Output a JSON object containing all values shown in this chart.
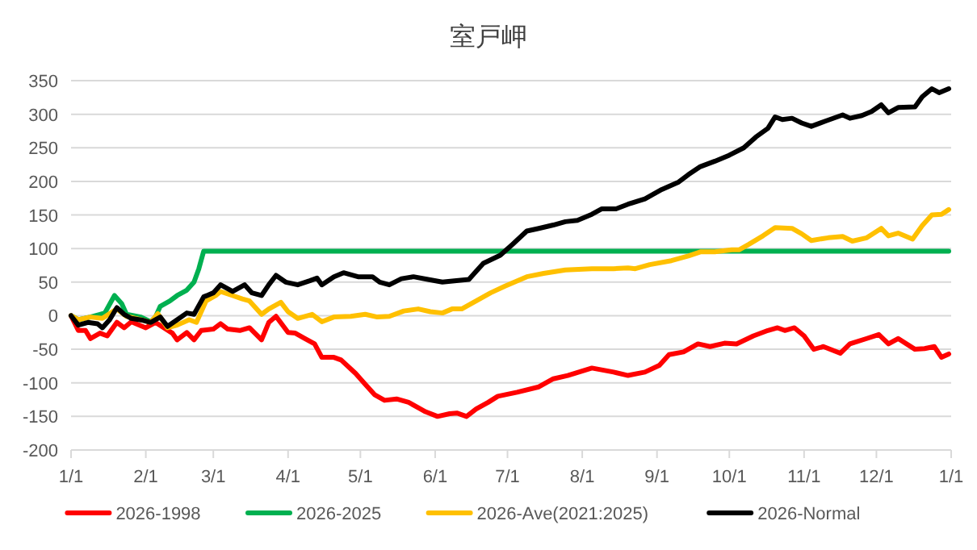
{
  "chart_data": {
    "type": "line",
    "title": "室戸岬",
    "xlim": [
      "2026-01-01",
      "2027-01-01"
    ],
    "xticks": [
      {
        "value": "2026-01-01",
        "label": "1/1"
      },
      {
        "value": "2026-02-01",
        "label": "2/1"
      },
      {
        "value": "2026-03-01",
        "label": "3/1"
      },
      {
        "value": "2026-04-01",
        "label": "4/1"
      },
      {
        "value": "2026-05-01",
        "label": "5/1"
      },
      {
        "value": "2026-06-01",
        "label": "6/1"
      },
      {
        "value": "2026-07-01",
        "label": "7/1"
      },
      {
        "value": "2026-08-01",
        "label": "8/1"
      },
      {
        "value": "2026-09-01",
        "label": "9/1"
      },
      {
        "value": "2026-10-01",
        "label": "10/1"
      },
      {
        "value": "2026-11-01",
        "label": "11/1"
      },
      {
        "value": "2026-12-01",
        "label": "12/1"
      },
      {
        "value": "2027-01-01",
        "label": "1/1"
      }
    ],
    "ylim": [
      -200,
      350
    ],
    "yticks": [
      -200,
      -150,
      -100,
      -50,
      0,
      50,
      100,
      150,
      200,
      250,
      300,
      350
    ],
    "grid": "y",
    "legend": "bottom",
    "line_style": "solid",
    "series": [
      {
        "name": "2026-1998",
        "color": "#ff0000",
        "x": [
          "2026-01-01",
          "2026-01-04",
          "2026-01-07",
          "2026-01-09",
          "2026-01-13",
          "2026-01-16",
          "2026-01-20",
          "2026-01-23",
          "2026-01-26",
          "2026-02-01",
          "2026-02-05",
          "2026-02-12",
          "2026-02-14",
          "2026-02-18",
          "2026-02-21",
          "2026-02-24",
          "2026-03-01",
          "2026-03-04",
          "2026-03-07",
          "2026-03-12",
          "2026-03-16",
          "2026-03-21",
          "2026-03-24",
          "2026-03-27",
          "2026-04-01",
          "2026-04-04",
          "2026-04-08",
          "2026-04-12",
          "2026-04-15",
          "2026-04-20",
          "2026-04-23",
          "2026-04-29",
          "2026-05-03",
          "2026-05-07",
          "2026-05-11",
          "2026-05-16",
          "2026-05-21",
          "2026-05-28",
          "2026-06-02",
          "2026-06-07",
          "2026-06-10",
          "2026-06-14",
          "2026-06-18",
          "2026-06-23",
          "2026-06-27",
          "2026-07-05",
          "2026-07-14",
          "2026-07-20",
          "2026-07-26",
          "2026-08-05",
          "2026-08-14",
          "2026-08-20",
          "2026-08-27",
          "2026-09-02",
          "2026-09-06",
          "2026-09-12",
          "2026-09-18",
          "2026-09-23",
          "2026-09-29",
          "2026-10-04",
          "2026-10-11",
          "2026-10-17",
          "2026-10-21",
          "2026-10-24",
          "2026-10-28",
          "2026-11-01",
          "2026-11-05",
          "2026-11-09",
          "2026-11-16",
          "2026-11-20",
          "2026-11-27",
          "2026-12-02",
          "2026-12-06",
          "2026-12-10",
          "2026-12-17",
          "2026-12-21",
          "2026-12-25",
          "2026-12-28",
          "2026-12-31"
        ],
        "values": [
          0,
          -22,
          -22,
          -34,
          -26,
          -30,
          -10,
          -18,
          -9,
          -18,
          -10,
          -26,
          -36,
          -25,
          -36,
          -22,
          -20,
          -12,
          -20,
          -22,
          -18,
          -36,
          -10,
          -1,
          -25,
          -26,
          -34,
          -42,
          -62,
          -62,
          -66,
          -86,
          -102,
          -118,
          -126,
          -124,
          -129,
          -143,
          -150,
          -146,
          -145,
          -150,
          -139,
          -129,
          -120,
          -114,
          -106,
          -94,
          -89,
          -78,
          -84,
          -89,
          -84,
          -74,
          -58,
          -54,
          -42,
          -46,
          -41,
          -42,
          -30,
          -22,
          -18,
          -22,
          -18,
          -30,
          -50,
          -46,
          -56,
          -42,
          -34,
          -28,
          -42,
          -34,
          -50,
          -49,
          -46,
          -62,
          -57
        ]
      },
      {
        "name": "2026-2025",
        "color": "#00b050",
        "x": [
          "2026-01-01",
          "2026-01-04",
          "2026-01-09",
          "2026-01-13",
          "2026-01-15",
          "2026-01-19",
          "2026-01-22",
          "2026-01-24",
          "2026-01-30",
          "2026-02-03",
          "2026-02-05",
          "2026-02-07",
          "2026-02-11",
          "2026-02-14",
          "2026-02-18",
          "2026-02-21",
          "2026-02-23",
          "2026-02-25",
          "2026-12-31"
        ],
        "values": [
          0,
          -6,
          -2,
          2,
          4,
          30,
          18,
          2,
          -2,
          -9,
          -2,
          14,
          22,
          30,
          38,
          50,
          70,
          96,
          96
        ]
      },
      {
        "name": "2026-Ave(2021:2025)",
        "color": "#ffc000",
        "x": [
          "2026-01-01",
          "2026-01-04",
          "2026-01-09",
          "2026-01-14",
          "2026-01-20",
          "2026-01-24",
          "2026-01-30",
          "2026-02-03",
          "2026-02-06",
          "2026-02-10",
          "2026-02-14",
          "2026-02-19",
          "2026-02-22",
          "2026-02-26",
          "2026-03-02",
          "2026-03-04",
          "2026-03-09",
          "2026-03-13",
          "2026-03-16",
          "2026-03-21",
          "2026-03-24",
          "2026-03-29",
          "2026-04-01",
          "2026-04-05",
          "2026-04-11",
          "2026-04-15",
          "2026-04-20",
          "2026-04-27",
          "2026-05-03",
          "2026-05-08",
          "2026-05-13",
          "2026-05-19",
          "2026-05-25",
          "2026-05-30",
          "2026-06-04",
          "2026-06-08",
          "2026-06-12",
          "2026-06-18",
          "2026-06-24",
          "2026-06-30",
          "2026-07-09",
          "2026-07-16",
          "2026-07-25",
          "2026-08-05",
          "2026-08-14",
          "2026-08-20",
          "2026-08-23",
          "2026-08-29",
          "2026-09-07",
          "2026-09-14",
          "2026-09-19",
          "2026-09-25",
          "2026-10-02",
          "2026-10-05",
          "2026-10-09",
          "2026-10-15",
          "2026-10-20",
          "2026-10-27",
          "2026-10-31",
          "2026-11-04",
          "2026-11-11",
          "2026-11-17",
          "2026-11-21",
          "2026-11-27",
          "2026-12-03",
          "2026-12-06",
          "2026-12-10",
          "2026-12-16",
          "2026-12-20",
          "2026-12-24",
          "2026-12-28",
          "2026-12-31"
        ],
        "values": [
          0,
          -6,
          -2,
          -4,
          10,
          -1,
          -6,
          -10,
          3,
          -18,
          -14,
          -6,
          -10,
          22,
          30,
          36,
          30,
          25,
          22,
          2,
          10,
          20,
          6,
          -4,
          2,
          -9,
          -2,
          -1,
          2,
          -2,
          -1,
          7,
          10,
          6,
          4,
          10,
          10,
          22,
          34,
          44,
          58,
          63,
          68,
          70,
          70,
          71,
          70,
          76,
          82,
          89,
          95,
          95,
          98,
          98,
          106,
          119,
          131,
          130,
          122,
          112,
          116,
          118,
          111,
          116,
          130,
          119,
          123,
          114,
          134,
          150,
          151,
          158
        ]
      },
      {
        "name": "2026-Normal",
        "color": "#000000",
        "x": [
          "2026-01-01",
          "2026-01-04",
          "2026-01-08",
          "2026-01-12",
          "2026-01-14",
          "2026-01-17",
          "2026-01-20",
          "2026-01-23",
          "2026-01-26",
          "2026-01-31",
          "2026-02-03",
          "2026-02-07",
          "2026-02-10",
          "2026-02-14",
          "2026-02-18",
          "2026-02-21",
          "2026-02-25",
          "2026-03-01",
          "2026-03-04",
          "2026-03-09",
          "2026-03-14",
          "2026-03-17",
          "2026-03-21",
          "2026-03-24",
          "2026-03-27",
          "2026-03-31",
          "2026-04-05",
          "2026-04-10",
          "2026-04-13",
          "2026-04-15",
          "2026-04-20",
          "2026-04-24",
          "2026-04-30",
          "2026-05-06",
          "2026-05-09",
          "2026-05-13",
          "2026-05-18",
          "2026-05-23",
          "2026-05-29",
          "2026-06-04",
          "2026-06-09",
          "2026-06-15",
          "2026-06-17",
          "2026-06-21",
          "2026-06-28",
          "2026-07-03",
          "2026-07-09",
          "2026-07-14",
          "2026-07-20",
          "2026-07-25",
          "2026-07-30",
          "2026-08-05",
          "2026-08-09",
          "2026-08-15",
          "2026-08-20",
          "2026-08-27",
          "2026-09-03",
          "2026-09-10",
          "2026-09-14",
          "2026-09-19",
          "2026-09-25",
          "2026-10-01",
          "2026-10-07",
          "2026-10-12",
          "2026-10-17",
          "2026-10-20",
          "2026-10-23",
          "2026-10-27",
          "2026-10-31",
          "2026-11-04",
          "2026-11-10",
          "2026-11-17",
          "2026-11-20",
          "2026-11-25",
          "2026-11-29",
          "2026-12-03",
          "2026-12-06",
          "2026-12-10",
          "2026-12-17",
          "2026-12-20",
          "2026-12-24",
          "2026-12-27",
          "2026-12-31"
        ],
        "values": [
          0,
          -14,
          -10,
          -12,
          -18,
          -6,
          12,
          2,
          -4,
          -7,
          -10,
          -2,
          -16,
          -6,
          4,
          2,
          28,
          34,
          46,
          36,
          46,
          34,
          30,
          46,
          60,
          50,
          46,
          52,
          56,
          46,
          58,
          64,
          58,
          58,
          50,
          46,
          55,
          58,
          54,
          50,
          52,
          54,
          62,
          78,
          90,
          106,
          126,
          130,
          135,
          140,
          142,
          151,
          159,
          159,
          166,
          174,
          188,
          199,
          210,
          222,
          230,
          239,
          250,
          266,
          279,
          296,
          292,
          294,
          287,
          282,
          290,
          299,
          294,
          298,
          304,
          314,
          302,
          310,
          311,
          326,
          338,
          332,
          338
        ]
      }
    ]
  }
}
